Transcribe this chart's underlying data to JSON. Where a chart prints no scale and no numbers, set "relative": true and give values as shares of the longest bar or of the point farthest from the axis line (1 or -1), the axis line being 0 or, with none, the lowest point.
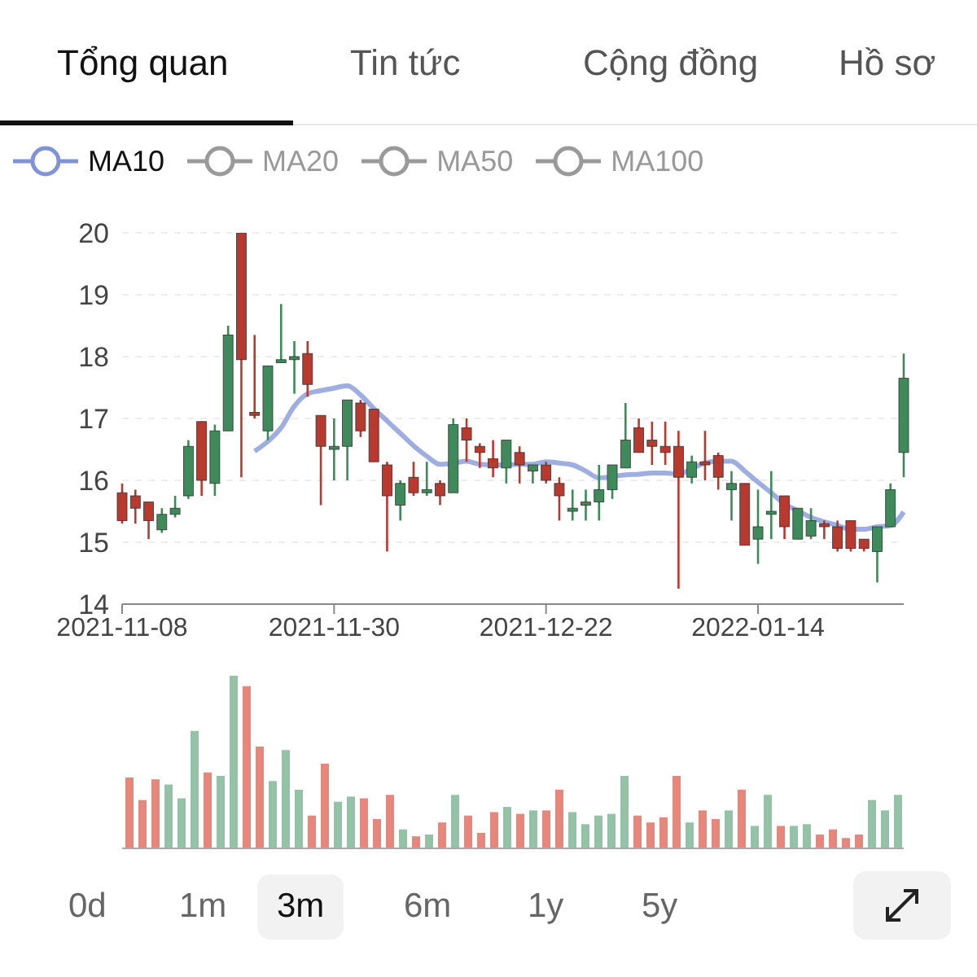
{
  "chart_data": [
    {
      "type": "candlestick",
      "annotations": [
        "Tổng quan",
        "Tin tức",
        "Cộng đồng",
        "Hồ sơ"
      ],
      "categories": [
        "2021-11-08",
        null,
        null,
        null,
        null,
        null,
        null,
        null,
        null,
        null,
        null,
        null,
        null,
        null,
        null,
        null,
        "2021-11-30",
        null,
        null,
        null,
        null,
        null,
        null,
        null,
        null,
        null,
        null,
        null,
        null,
        null,
        null,
        null,
        "2021-12-22",
        null,
        null,
        null,
        null,
        null,
        null,
        null,
        null,
        null,
        null,
        null,
        null,
        null,
        null,
        null,
        "2022-01-14",
        null,
        null,
        null,
        null,
        null,
        null,
        null,
        null,
        null,
        null,
        null
      ],
      "ohlc": [
        [
          15.8,
          15.95,
          15.3,
          15.35
        ],
        [
          15.75,
          15.85,
          15.3,
          15.55
        ],
        [
          15.65,
          15.65,
          15.05,
          15.35
        ],
        [
          15.2,
          15.55,
          15.15,
          15.45
        ],
        [
          15.45,
          15.75,
          15.4,
          15.55
        ],
        [
          15.75,
          16.65,
          15.7,
          16.55
        ],
        [
          16.95,
          16.95,
          15.75,
          16.0
        ],
        [
          15.95,
          16.9,
          15.75,
          16.8
        ],
        [
          16.8,
          18.5,
          16.8,
          18.35
        ],
        [
          20.0,
          20.0,
          16.05,
          17.95
        ],
        [
          17.1,
          18.35,
          17.0,
          17.05
        ],
        [
          16.8,
          17.85,
          16.65,
          17.85
        ],
        [
          17.9,
          18.85,
          17.9,
          17.95
        ],
        [
          17.95,
          18.25,
          17.4,
          18.0
        ],
        [
          18.05,
          18.25,
          17.35,
          17.55
        ],
        [
          17.05,
          17.05,
          15.6,
          16.55
        ],
        [
          16.5,
          17.0,
          16.0,
          16.55
        ],
        [
          16.55,
          17.3,
          16.0,
          17.3
        ],
        [
          17.25,
          17.3,
          16.7,
          16.8
        ],
        [
          17.15,
          17.15,
          16.3,
          16.3
        ],
        [
          16.25,
          16.3,
          14.85,
          15.75
        ],
        [
          15.6,
          16.0,
          15.35,
          15.95
        ],
        [
          16.05,
          16.3,
          15.75,
          15.8
        ],
        [
          15.8,
          16.3,
          15.75,
          15.85
        ],
        [
          15.95,
          16.0,
          15.6,
          15.75
        ],
        [
          15.8,
          17.0,
          15.8,
          16.9
        ],
        [
          16.85,
          17.0,
          16.3,
          16.65
        ],
        [
          16.55,
          16.6,
          16.2,
          16.45
        ],
        [
          16.35,
          16.65,
          16.05,
          16.2
        ],
        [
          16.2,
          16.65,
          15.95,
          16.65
        ],
        [
          16.45,
          16.55,
          15.95,
          16.25
        ],
        [
          16.15,
          16.25,
          15.95,
          16.25
        ],
        [
          16.25,
          16.3,
          15.95,
          16.0
        ],
        [
          15.95,
          16.05,
          15.35,
          15.75
        ],
        [
          15.5,
          15.85,
          15.35,
          15.55
        ],
        [
          15.6,
          15.85,
          15.35,
          15.65
        ],
        [
          15.65,
          16.25,
          15.35,
          15.85
        ],
        [
          15.85,
          16.25,
          15.7,
          16.25
        ],
        [
          16.2,
          17.25,
          16.2,
          16.65
        ],
        [
          16.85,
          17.0,
          16.45,
          16.45
        ],
        [
          16.65,
          16.95,
          16.25,
          16.55
        ],
        [
          16.55,
          16.95,
          16.25,
          16.45
        ],
        [
          16.55,
          16.8,
          14.25,
          16.05
        ],
        [
          16.05,
          16.4,
          15.95,
          16.3
        ],
        [
          16.3,
          16.8,
          16.0,
          16.25
        ],
        [
          16.4,
          16.45,
          15.85,
          16.05
        ],
        [
          15.85,
          16.15,
          15.35,
          15.95
        ],
        [
          15.95,
          15.95,
          14.95,
          14.95
        ],
        [
          15.05,
          15.85,
          14.65,
          15.25
        ],
        [
          15.45,
          16.15,
          15.05,
          15.5
        ],
        [
          15.75,
          15.75,
          15.05,
          15.25
        ],
        [
          15.05,
          15.55,
          15.05,
          15.55
        ],
        [
          15.1,
          15.55,
          15.05,
          15.35
        ],
        [
          15.3,
          15.35,
          15.05,
          15.25
        ],
        [
          15.25,
          15.35,
          14.85,
          14.9
        ],
        [
          15.35,
          15.35,
          14.85,
          14.9
        ],
        [
          15.05,
          15.05,
          14.85,
          14.9
        ],
        [
          14.85,
          15.25,
          14.35,
          15.25
        ],
        [
          15.25,
          15.95,
          15.25,
          15.85
        ],
        [
          16.45,
          18.05,
          16.05,
          17.65
        ]
      ],
      "colors": [
        "#b8392e",
        "#b8392e",
        "#b8392e",
        "#3f8a5a",
        "#3f8a5a",
        "#3f8a5a",
        "#b8392e",
        "#3f8a5a",
        "#3f8a5a",
        "#b8392e",
        "#b8392e",
        "#3f8a5a",
        "#3f8a5a",
        "#3f8a5a",
        "#b8392e",
        "#b8392e",
        "#3f8a5a",
        "#3f8a5a",
        "#b8392e",
        "#b8392e",
        "#b8392e",
        "#3f8a5a",
        "#b8392e",
        "#3f8a5a",
        "#b8392e",
        "#3f8a5a",
        "#b8392e",
        "#b8392e",
        "#b8392e",
        "#3f8a5a",
        "#b8392e",
        "#3f8a5a",
        "#b8392e",
        "#b8392e",
        "#3f8a5a",
        "#3f8a5a",
        "#3f8a5a",
        "#3f8a5a",
        "#3f8a5a",
        "#b8392e",
        "#b8392e",
        "#b8392e",
        "#b8392e",
        "#3f8a5a",
        "#b8392e",
        "#b8392e",
        "#3f8a5a",
        "#b8392e",
        "#3f8a5a",
        "#3f8a5a",
        "#b8392e",
        "#3f8a5a",
        "#3f8a5a",
        "#b8392e",
        "#b8392e",
        "#b8392e",
        "#b8392e",
        "#3f8a5a",
        "#3f8a5a",
        "#3f8a5a"
      ],
      "series": [
        {
          "name": "MA10",
          "type": "line",
          "color": "#7f93d6",
          "values": [
            null,
            null,
            null,
            null,
            null,
            null,
            null,
            null,
            null,
            null,
            16.47,
            16.63,
            16.85,
            17.2,
            17.4,
            17.45,
            17.49,
            17.53,
            17.38,
            17.16,
            16.96,
            16.76,
            16.56,
            16.39,
            16.26,
            16.28,
            16.31,
            16.26,
            16.25,
            16.25,
            16.26,
            16.26,
            16.3,
            16.28,
            16.25,
            16.15,
            16.04,
            16.06,
            16.09,
            16.1,
            16.12,
            16.12,
            16.1,
            16.19,
            16.28,
            16.31,
            16.31,
            16.15,
            15.97,
            15.8,
            15.62,
            15.51,
            15.4,
            15.33,
            15.27,
            15.21,
            15.21,
            15.25,
            15.27,
            15.49
          ]
        },
        {
          "name": "MA20",
          "type": "line",
          "color": "#9a9a9a",
          "values": [
            null,
            null,
            null,
            null,
            null,
            null,
            null,
            null,
            null,
            null,
            null,
            null,
            null,
            null,
            null,
            null,
            null,
            null,
            null,
            null,
            null,
            null,
            null,
            null,
            null,
            null,
            null,
            null,
            null,
            null,
            null,
            null,
            null,
            null,
            null,
            null,
            null,
            null,
            null,
            null,
            null,
            null,
            null,
            null,
            null,
            null,
            null,
            null,
            null,
            null,
            null,
            null,
            null,
            null,
            null,
            null,
            null,
            null,
            null,
            null
          ]
        },
        {
          "name": "MA50",
          "type": "line",
          "color": "#9a9a9a",
          "values": [
            null,
            null,
            null,
            null,
            null,
            null,
            null,
            null,
            null,
            null,
            null,
            null,
            null,
            null,
            null,
            null,
            null,
            null,
            null,
            null,
            null,
            null,
            null,
            null,
            null,
            null,
            null,
            null,
            null,
            null,
            null,
            null,
            null,
            null,
            null,
            null,
            null,
            null,
            null,
            null,
            null,
            null,
            null,
            null,
            null,
            null,
            null,
            null,
            null,
            null,
            null,
            null,
            null,
            null,
            null,
            null,
            null,
            null,
            null,
            null
          ]
        },
        {
          "name": "MA100",
          "type": "line",
          "color": "#9a9a9a",
          "values": [
            null,
            null,
            null,
            null,
            null,
            null,
            null,
            null,
            null,
            null,
            null,
            null,
            null,
            null,
            null,
            null,
            null,
            null,
            null,
            null,
            null,
            null,
            null,
            null,
            null,
            null,
            null,
            null,
            null,
            null,
            null,
            null,
            null,
            null,
            null,
            null,
            null,
            null,
            null,
            null,
            null,
            null,
            null,
            null,
            null,
            null,
            null,
            null,
            null,
            null,
            null,
            null,
            null,
            null,
            null,
            null,
            null,
            null,
            null,
            null
          ]
        }
      ],
      "ylim": [
        14,
        20
      ],
      "yticks": [
        14,
        15,
        16,
        17,
        18,
        19,
        20
      ],
      "grid": "y",
      "legend": "top left",
      "marker": "none"
    },
    {
      "type": "bar",
      "relative": true,
      "tick_labels": false,
      "annotations": [
        "0d",
        "1m",
        "3m",
        "6m",
        "1y",
        "5y"
      ],
      "categories": [
        null,
        null,
        null,
        null,
        null,
        null,
        null,
        null,
        null,
        null,
        null,
        null,
        null,
        null,
        null,
        null,
        null,
        null,
        null,
        null,
        null,
        null,
        null,
        null,
        null,
        null,
        null,
        null,
        null,
        null,
        null,
        null,
        null,
        null,
        null,
        null,
        null,
        null,
        null,
        null,
        null,
        null,
        null,
        null,
        null,
        null,
        null,
        null,
        null,
        null,
        null,
        null,
        null,
        null,
        null,
        null,
        null,
        null,
        null,
        null
      ],
      "values": [
        0.41,
        0.28,
        0.4,
        0.37,
        0.29,
        0.68,
        0.44,
        0.42,
        1,
        0.94,
        0.59,
        0.39,
        0.57,
        0.34,
        0.19,
        0.49,
        0.27,
        0.3,
        0.29,
        0.17,
        0.31,
        0.11,
        0.07,
        0.08,
        0.15,
        0.31,
        0.19,
        0.09,
        0.21,
        0.24,
        0.2,
        0.22,
        0.22,
        0.34,
        0.21,
        0.14,
        0.19,
        0.2,
        0.42,
        0.19,
        0.15,
        0.18,
        0.42,
        0.15,
        0.22,
        0.17,
        0.22,
        0.34,
        0.13,
        0.31,
        0.13,
        0.13,
        0.14,
        0.08,
        0.11,
        0.06,
        0.08,
        0.28,
        0.22,
        0.31
      ],
      "colors": [
        "#e5877b",
        "#e5877b",
        "#e5877b",
        "#93c2a6",
        "#93c2a6",
        "#93c2a6",
        "#e5877b",
        "#93c2a6",
        "#93c2a6",
        "#e5877b",
        "#e5877b",
        "#93c2a6",
        "#93c2a6",
        "#93c2a6",
        "#e5877b",
        "#e5877b",
        "#93c2a6",
        "#93c2a6",
        "#e5877b",
        "#e5877b",
        "#e5877b",
        "#93c2a6",
        "#e5877b",
        "#93c2a6",
        "#e5877b",
        "#93c2a6",
        "#e5877b",
        "#e5877b",
        "#e5877b",
        "#93c2a6",
        "#e5877b",
        "#93c2a6",
        "#e5877b",
        "#e5877b",
        "#93c2a6",
        "#93c2a6",
        "#93c2a6",
        "#93c2a6",
        "#93c2a6",
        "#e5877b",
        "#e5877b",
        "#e5877b",
        "#e5877b",
        "#93c2a6",
        "#e5877b",
        "#e5877b",
        "#93c2a6",
        "#e5877b",
        "#93c2a6",
        "#93c2a6",
        "#e5877b",
        "#93c2a6",
        "#93c2a6",
        "#e5877b",
        "#e5877b",
        "#e5877b",
        "#e5877b",
        "#93c2a6",
        "#93c2a6",
        "#93c2a6"
      ]
    }
  ]
}
